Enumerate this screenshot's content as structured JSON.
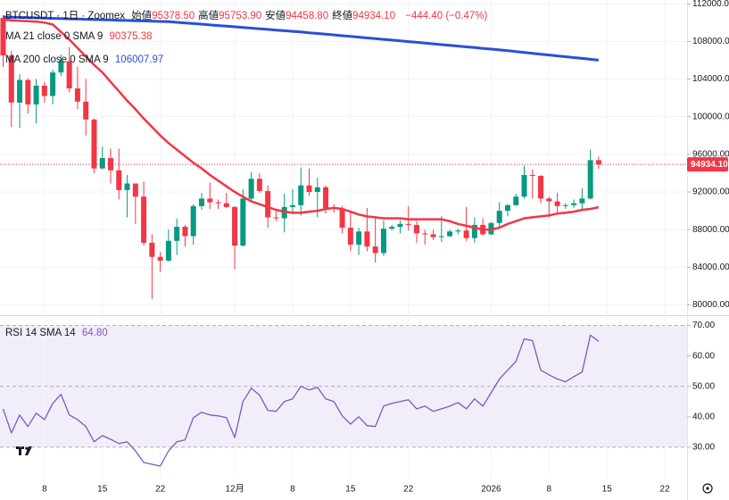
{
  "header": {
    "symbol": "BTCUSDT · 1日 · Zoomex",
    "fields": [
      {
        "label": "始値",
        "value": "95378.50"
      },
      {
        "label": "高値",
        "value": "95753.90"
      },
      {
        "label": "安値",
        "value": "94458.80"
      },
      {
        "label": "終値",
        "value": "94934.10"
      }
    ],
    "change": "−444.40 (−0.47%)"
  },
  "chart_data": [
    {
      "type": "candlestick",
      "categories": [
        null,
        null,
        null,
        null,
        null,
        "8",
        null,
        null,
        null,
        null,
        null,
        null,
        "15",
        null,
        null,
        null,
        null,
        null,
        null,
        "22",
        null,
        null,
        null,
        null,
        null,
        null,
        null,
        null,
        "12月",
        null,
        null,
        null,
        null,
        null,
        null,
        "8",
        null,
        null,
        null,
        null,
        null,
        null,
        "15",
        null,
        null,
        null,
        null,
        null,
        null,
        "22",
        null,
        null,
        null,
        null,
        null,
        null,
        null,
        null,
        null,
        "2026",
        null,
        null,
        null,
        null,
        null,
        null,
        "8",
        null,
        null,
        null,
        null,
        null,
        null,
        "15",
        null,
        null,
        null,
        null,
        null,
        null,
        "22"
      ],
      "open": [
        110500,
        106500,
        101500,
        103900,
        101300,
        103300,
        102200,
        104700,
        105900,
        103000,
        101600,
        99700,
        94500,
        95600,
        94300,
        92200,
        92900,
        91500,
        86600,
        85100,
        84700,
        86800,
        88300,
        87300,
        90500,
        91300,
        90900,
        90800,
        90400,
        86300,
        91300,
        93400,
        92100,
        89300,
        89200,
        90400,
        90600,
        92700,
        92000,
        92500,
        90300,
        90250,
        88200,
        86400,
        87800,
        86200,
        85500,
        88100,
        88300,
        88600,
        88500,
        87600,
        87500,
        87200,
        87300,
        87800,
        87900,
        87100,
        88500,
        87500,
        88700,
        90000,
        90600,
        91500,
        93800,
        93700,
        91300,
        91000,
        90500,
        90600,
        90800,
        91300,
        95378.5,
        null,
        null,
        null,
        null,
        null,
        null,
        null,
        null
      ],
      "high": [
        110800,
        107000,
        104500,
        104100,
        104000,
        103700,
        105000,
        106600,
        107400,
        105300,
        104000,
        99800,
        96800,
        96600,
        96600,
        93800,
        92900,
        93100,
        87500,
        85600,
        88000,
        89200,
        88500,
        90700,
        91900,
        93000,
        91200,
        91900,
        90500,
        92300,
        94100,
        94000,
        92700,
        90200,
        91800,
        92300,
        94600,
        94500,
        93500,
        92700,
        90700,
        90500,
        90000,
        88200,
        90300,
        89400,
        89000,
        88500,
        89000,
        90500,
        88900,
        88000,
        88000,
        89400,
        88000,
        88100,
        90400,
        89300,
        89200,
        88800,
        90900,
        90700,
        91800,
        94800,
        94400,
        93800,
        91500,
        91900,
        90800,
        91200,
        92400,
        96500,
        95753.9,
        null,
        null,
        null,
        null,
        null,
        null,
        null,
        null
      ],
      "low": [
        105300,
        98900,
        98800,
        100300,
        99300,
        101500,
        101300,
        104300,
        102600,
        100800,
        98000,
        94000,
        94400,
        92900,
        91200,
        89300,
        88600,
        86300,
        80600,
        83500,
        84600,
        85300,
        86200,
        86400,
        90100,
        90200,
        90200,
        90300,
        83800,
        86200,
        91000,
        91900,
        88200,
        88900,
        87700,
        89600,
        89500,
        91600,
        89300,
        89700,
        89800,
        87600,
        85700,
        85300,
        85700,
        84500,
        85200,
        87900,
        87600,
        87900,
        86600,
        86400,
        86900,
        86700,
        87200,
        87500,
        86800,
        86600,
        87300,
        87400,
        88300,
        89400,
        90500,
        91300,
        91300,
        90800,
        89300,
        89800,
        90200,
        90300,
        90000,
        91200,
        94458.8,
        null,
        null,
        null,
        null,
        null,
        null,
        null,
        null
      ],
      "close": [
        106500,
        101500,
        103900,
        101300,
        103300,
        102200,
        104700,
        105900,
        103000,
        101600,
        99700,
        94500,
        95600,
        94300,
        92200,
        92900,
        91500,
        86600,
        85100,
        84700,
        86800,
        88300,
        87300,
        90500,
        91300,
        90900,
        90800,
        90400,
        86300,
        91300,
        93400,
        92100,
        89300,
        89200,
        90400,
        90600,
        92700,
        92000,
        92500,
        90300,
        90250,
        88200,
        86400,
        87800,
        86200,
        85500,
        88100,
        88300,
        88600,
        88500,
        87600,
        87500,
        87200,
        87300,
        87800,
        87900,
        87100,
        88500,
        87500,
        88700,
        90000,
        90600,
        91500,
        93800,
        93700,
        91300,
        91000,
        90500,
        90600,
        90800,
        91300,
        95378.5,
        94934.1,
        null,
        null,
        null,
        null,
        null,
        null,
        null,
        null
      ],
      "up_color": "#089981",
      "down_color": "#f23645",
      "series": [
        {
          "name": "MA 21 close 0 SMA 9",
          "color": "#f23645",
          "value_label": "90375.38",
          "values": [
            110300,
            110250,
            110200,
            110150,
            110100,
            110000,
            109800,
            109000,
            108200,
            107300,
            106400,
            105500,
            104700,
            103700,
            102700,
            101700,
            100800,
            99800,
            98900,
            98000,
            97200,
            96500,
            95800,
            95100,
            94500,
            93800,
            93200,
            92600,
            92000,
            91500,
            91000,
            90700,
            90400,
            90100,
            89900,
            89800,
            89800,
            89900,
            90000,
            90200,
            90300,
            90200,
            89900,
            89600,
            89400,
            89300,
            89200,
            89200,
            89200,
            89100,
            89100,
            89100,
            89100,
            89100,
            88900,
            88600,
            88400,
            88200,
            88000,
            88000,
            88200,
            88600,
            88900,
            89200,
            89300,
            89400,
            89500,
            89700,
            89800,
            89900,
            90100,
            90200,
            90375.38,
            null,
            null,
            null,
            null,
            null,
            null,
            null,
            null
          ]
        },
        {
          "name": "MA 200 close 0 SMA 9",
          "color": "#2a4fd6",
          "value_label": "106007.97",
          "values": [
            110600,
            110575,
            110550,
            110525,
            110500,
            110475,
            110450,
            110425,
            110400,
            110375,
            110350,
            110325,
            110300,
            110275,
            110250,
            110225,
            110200,
            110175,
            110150,
            110125,
            110100,
            110031,
            109963,
            109894,
            109825,
            109756,
            109688,
            109619,
            109550,
            109481,
            109413,
            109344,
            109275,
            109206,
            109138,
            109069,
            109000,
            108921,
            108843,
            108764,
            108686,
            108607,
            108529,
            108450,
            108371,
            108293,
            108214,
            108136,
            108057,
            107979,
            107900,
            107820,
            107740,
            107660,
            107580,
            107500,
            107420,
            107340,
            107260,
            107180,
            107100,
            107009,
            106918,
            106827,
            106736,
            106645,
            106554,
            106463,
            106372,
            106281,
            106190,
            106099,
            106007.97,
            null,
            null,
            null,
            null,
            null,
            null,
            null,
            null
          ]
        }
      ],
      "ylim": [
        79000,
        112400
      ],
      "yticks": [
        {
          "value": 80000,
          "label": "80000.00"
        },
        {
          "value": 84000,
          "label": "84000.00"
        },
        {
          "value": 88000,
          "label": "88000.00"
        },
        {
          "value": 92000,
          "label": "92000.00"
        },
        {
          "value": 96000,
          "label": "96000.00"
        },
        {
          "value": 100000,
          "label": "100000.00"
        },
        {
          "value": 104000,
          "label": "104000.00"
        },
        {
          "value": 108000,
          "label": "108000.00"
        },
        {
          "value": 112000,
          "label": "112000.00"
        }
      ],
      "grid": true,
      "last_price_label": "94934.10"
    },
    {
      "type": "line",
      "series": [
        {
          "name": "RSI 14 SMA 14",
          "color": "#7e57c2",
          "value_label": "64.80",
          "values": [
            42.6,
            34.7,
            40.6,
            36.8,
            41.2,
            39.1,
            44.4,
            47.4,
            40.6,
            39.1,
            36.8,
            31.8,
            33.8,
            32.6,
            31.2,
            31.8,
            28.8,
            25,
            24.4,
            23.8,
            28.8,
            31.8,
            32.4,
            39.7,
            41.5,
            40.6,
            40.3,
            39.7,
            33.2,
            45,
            49.4,
            47.1,
            42.1,
            41.8,
            45,
            45.9,
            50,
            48.8,
            49.7,
            45.9,
            45,
            40.3,
            37.6,
            40,
            37.1,
            36.8,
            43.5,
            44.4,
            45,
            45.6,
            42.6,
            43.5,
            41.8,
            42.6,
            43.5,
            44.7,
            42.6,
            45.9,
            43.5,
            47.9,
            52.4,
            55.3,
            58.2,
            65.6,
            65,
            55.3,
            53.8,
            52.4,
            51.5,
            53.2,
            54.7,
            66.8,
            64.8,
            null,
            null,
            null,
            null,
            null,
            null,
            null,
            null
          ]
        }
      ],
      "ylim": [
        20,
        72.5
      ],
      "yticks": [
        {
          "value": 30,
          "label": "30.00"
        },
        {
          "value": 40,
          "label": "40.00"
        },
        {
          "value": 50,
          "label": "50.00"
        },
        {
          "value": 60,
          "label": "60.00"
        },
        {
          "value": 70,
          "label": "70.00"
        }
      ],
      "band": [
        30,
        70
      ],
      "midline": 50,
      "band_color": "#7e57c2"
    }
  ]
}
